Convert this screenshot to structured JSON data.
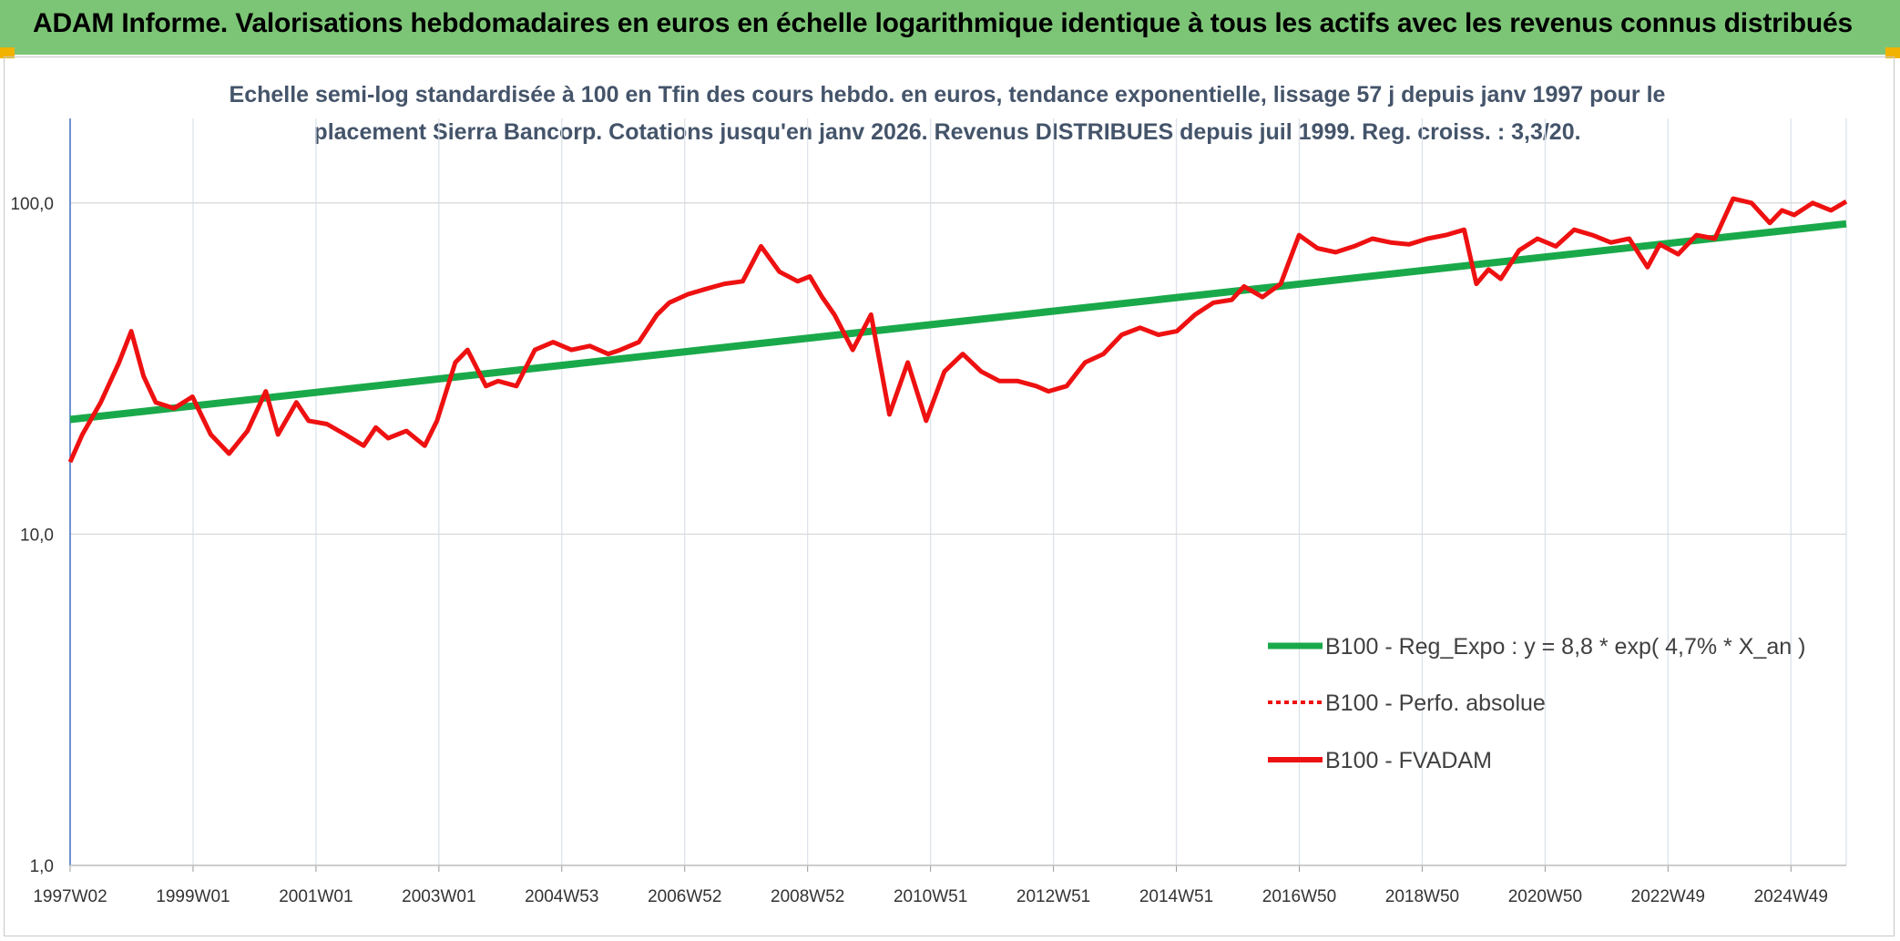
{
  "header": {
    "title": "ADAM Informe. Valorisations hebdomadaires en euros en échelle logarithmique identique à tous les actifs avec les revenus connus distribués"
  },
  "colors": {
    "banner": "#7cc576",
    "trend": "#1aa94a",
    "series": "#ee1111",
    "subtitle": "#44546a",
    "accent_corner": "#f2b300"
  },
  "chart_data": {
    "type": "line",
    "subtitle_line1": "Echelle semi-log standardisée à 100 en Tfin des cours hebdo. en euros, tendance exponentielle, lissage 57 j depuis janv 1997 pour le",
    "subtitle_line2": "placement Sierra Bancorp. Cotations jusqu'en janv 2026. Revenus DISTRIBUES depuis juil 1999. Reg. croiss. : 3,3/20.",
    "y_scale": "log",
    "ylim": [
      1,
      180
    ],
    "y_ticks": [
      "100,0",
      "10,0",
      "1,0"
    ],
    "x_ticks": [
      "1997W02",
      "1999W01",
      "2001W01",
      "2003W01",
      "2004W53",
      "2006W52",
      "2008W52",
      "2010W51",
      "2012W51",
      "2014W51",
      "2016W50",
      "2018W50",
      "2020W50",
      "2022W49",
      "2024W49"
    ],
    "x_range": [
      1997.0,
      2026.05
    ],
    "grid": true,
    "legend_position": "right",
    "series": [
      {
        "name": "B100 - Reg_Expo : y = 8,8 * exp( 4,7% *  X_an )",
        "style": "thick-solid",
        "x": [
          1997.0,
          2026.05
        ],
        "values": [
          22.2,
          86.5
        ]
      },
      {
        "name": "B100 - Perfo. absolue",
        "style": "dotted",
        "x": [],
        "values": []
      },
      {
        "name": "B100 - FVADAM",
        "style": "solid",
        "x": [
          1997.0,
          1997.2,
          1997.5,
          1997.8,
          1998.0,
          1998.2,
          1998.4,
          1998.7,
          1999.0,
          1999.3,
          1999.6,
          1999.9,
          2000.2,
          2000.4,
          2000.7,
          2000.9,
          2001.2,
          2001.5,
          2001.8,
          2002.0,
          2002.2,
          2002.5,
          2002.8,
          2003.0,
          2003.3,
          2003.5,
          2003.8,
          2004.0,
          2004.3,
          2004.6,
          2004.9,
          2005.2,
          2005.5,
          2005.8,
          2006.0,
          2006.3,
          2006.6,
          2006.8,
          2007.1,
          2007.4,
          2007.7,
          2008.0,
          2008.3,
          2008.6,
          2008.9,
          2009.1,
          2009.3,
          2009.5,
          2009.8,
          2010.1,
          2010.4,
          2010.7,
          2011.0,
          2011.3,
          2011.6,
          2011.9,
          2012.2,
          2012.5,
          2012.8,
          2013.0,
          2013.3,
          2013.6,
          2013.9,
          2014.2,
          2014.5,
          2014.8,
          2015.1,
          2015.4,
          2015.7,
          2016.0,
          2016.2,
          2016.5,
          2016.8,
          2017.1,
          2017.4,
          2017.7,
          2018.0,
          2018.3,
          2018.6,
          2018.9,
          2019.2,
          2019.5,
          2019.8,
          2020.0,
          2020.2,
          2020.4,
          2020.7,
          2021.0,
          2021.3,
          2021.6,
          2021.9,
          2022.2,
          2022.5,
          2022.8,
          2023.0,
          2023.3,
          2023.6,
          2023.9,
          2024.2,
          2024.5,
          2024.8,
          2025.0,
          2025.2,
          2025.5,
          2025.8,
          2026.05
        ],
        "values": [
          16.5,
          20,
          25,
          33,
          41,
          30,
          25,
          24,
          26,
          20,
          17.5,
          20.5,
          27,
          20,
          25,
          22,
          21.5,
          20,
          18.5,
          21,
          19.5,
          20.5,
          18.5,
          22,
          33,
          36,
          28,
          29,
          28,
          36,
          38,
          36,
          37,
          35,
          36,
          38,
          46,
          50,
          53,
          55,
          57,
          58,
          74,
          62,
          58,
          60,
          52,
          46,
          36,
          46,
          23,
          33,
          22,
          31,
          35,
          31,
          29,
          29,
          28,
          27,
          28,
          33,
          35,
          40,
          42,
          40,
          41,
          46,
          50,
          51,
          56,
          52,
          57,
          80,
          73,
          71,
          74,
          78,
          76,
          75,
          78,
          80,
          83,
          57,
          63,
          59,
          72,
          78,
          74,
          83,
          80,
          76,
          78,
          64,
          75,
          70,
          80,
          78,
          103,
          100,
          87,
          95,
          92,
          100,
          95,
          101
        ]
      }
    ]
  }
}
